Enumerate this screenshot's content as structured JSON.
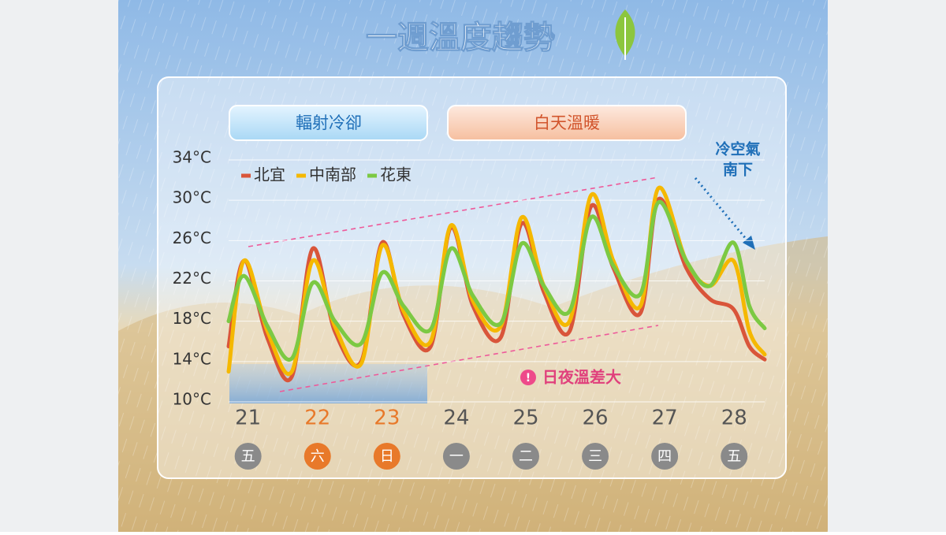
{
  "chart_data": {
    "type": "line",
    "title": "一週溫度趨勢",
    "boxes": [
      "輻射冷卻",
      "白天溫暖"
    ],
    "annotations": {
      "cold_air": [
        "冷空氣",
        "南下"
      ],
      "diurnal": "日夜溫差大"
    },
    "x": [
      20.72,
      20.94,
      21.28,
      21.63,
      21.93,
      22.25,
      22.63,
      22.93,
      23.24,
      23.63,
      23.92,
      24.24,
      24.64,
      24.94,
      25.26,
      25.63,
      25.94,
      26.26,
      26.65,
      26.91,
      27.31,
      27.65,
      27.99,
      28.22,
      28.44
    ],
    "series": [
      {
        "name": "北宜",
        "color": "#d9553a",
        "values": [
          15.5,
          24,
          16.3,
          12.5,
          25.2,
          17.0,
          14.0,
          25.8,
          18.6,
          15.5,
          27.3,
          19.5,
          16.4,
          27.7,
          20.9,
          17.0,
          29.4,
          23.3,
          18.8,
          30.1,
          23.3,
          20.2,
          19.2,
          15.5,
          14.2
        ]
      },
      {
        "name": "中南部",
        "color": "#f5b800",
        "values": [
          13,
          24.0,
          17.0,
          13.0,
          24.0,
          17.5,
          13.8,
          25.5,
          19.0,
          16.0,
          27.5,
          20.0,
          17.5,
          28.3,
          21.5,
          18.0,
          30.5,
          24.0,
          19.5,
          31.2,
          24.0,
          21.5,
          24.0,
          17.0,
          14.7
        ]
      },
      {
        "name": "花東",
        "color": "#7cc943",
        "values": [
          18,
          22.5,
          17.5,
          14.3,
          21.8,
          18.0,
          15.8,
          22.8,
          19.5,
          17.2,
          25.2,
          20.5,
          17.8,
          25.7,
          21.5,
          19.0,
          28.3,
          23.5,
          20.7,
          29.8,
          24.0,
          21.5,
          25.8,
          19.5,
          17.3
        ]
      }
    ],
    "xlim": [
      20.72,
      28.44
    ],
    "xticks": [
      21,
      22,
      23,
      24,
      25,
      26,
      27,
      28
    ],
    "weekdays": [
      "五",
      "六",
      "日",
      "一",
      "二",
      "三",
      "四",
      "五"
    ],
    "highlight": [
      false,
      true,
      true,
      false,
      false,
      false,
      false,
      false
    ],
    "highlight_color": "#e8792a",
    "ylim": [
      10,
      34
    ],
    "yticks": [
      {
        "value": 10,
        "label": "10°C"
      },
      {
        "value": 14,
        "label": "14°C"
      },
      {
        "value": 18,
        "label": "18°C"
      },
      {
        "value": 22,
        "label": "22°C"
      },
      {
        "value": 26,
        "label": "26°C"
      },
      {
        "value": 30,
        "label": "30°C"
      },
      {
        "value": 34,
        "label": "34°C"
      }
    ],
    "grid": true,
    "legend": "upper left"
  }
}
